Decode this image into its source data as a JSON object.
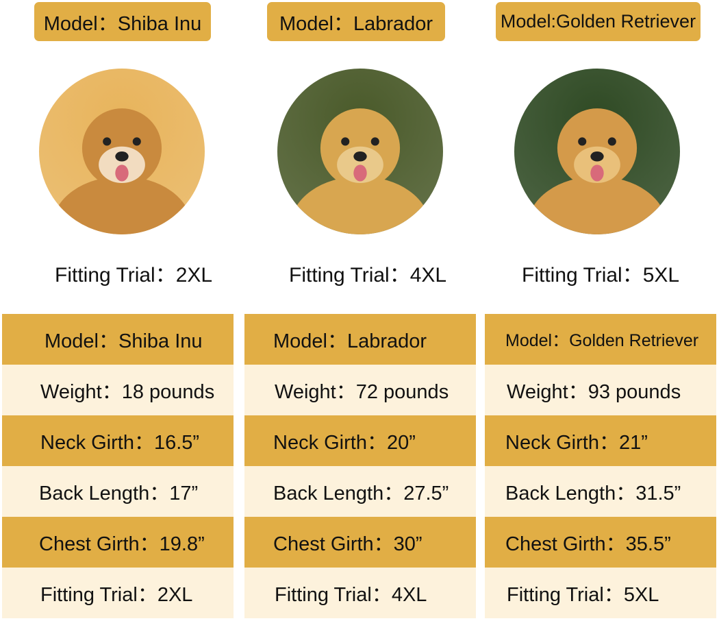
{
  "colors": {
    "gold": "#E1AE45",
    "cream": "#FDF2DC"
  },
  "dogs": [
    {
      "header": "Model：Shiba Inu",
      "photo": "shiba-inu-photo",
      "fitting_caption": "Fitting Trial：2XL",
      "rows": [
        "Model：Shiba Inu",
        "Weight：18 pounds",
        "Neck Girth：16.5”",
        "Back Length：17”",
        "Chest Girth：19.8”",
        "Fitting Trial：2XL"
      ]
    },
    {
      "header": "Model：Labrador",
      "photo": "labrador-photo",
      "fitting_caption": "Fitting Trial：4XL",
      "rows": [
        "Model：Labrador",
        "Weight：72 pounds",
        "Neck Girth：20”",
        "Back Length：27.5”",
        "Chest Girth：30”",
        "Fitting Trial：4XL"
      ]
    },
    {
      "header": "Model:Golden Retriever",
      "photo": "golden-retriever-photo",
      "fitting_caption": "Fitting Trial：5XL",
      "rows": [
        "Model：Golden Retriever",
        "Weight：93 pounds",
        "Neck Girth：21”",
        "Back Length：31.5”",
        "Chest Girth：35.5”",
        "Fitting Trial：5XL"
      ]
    }
  ]
}
